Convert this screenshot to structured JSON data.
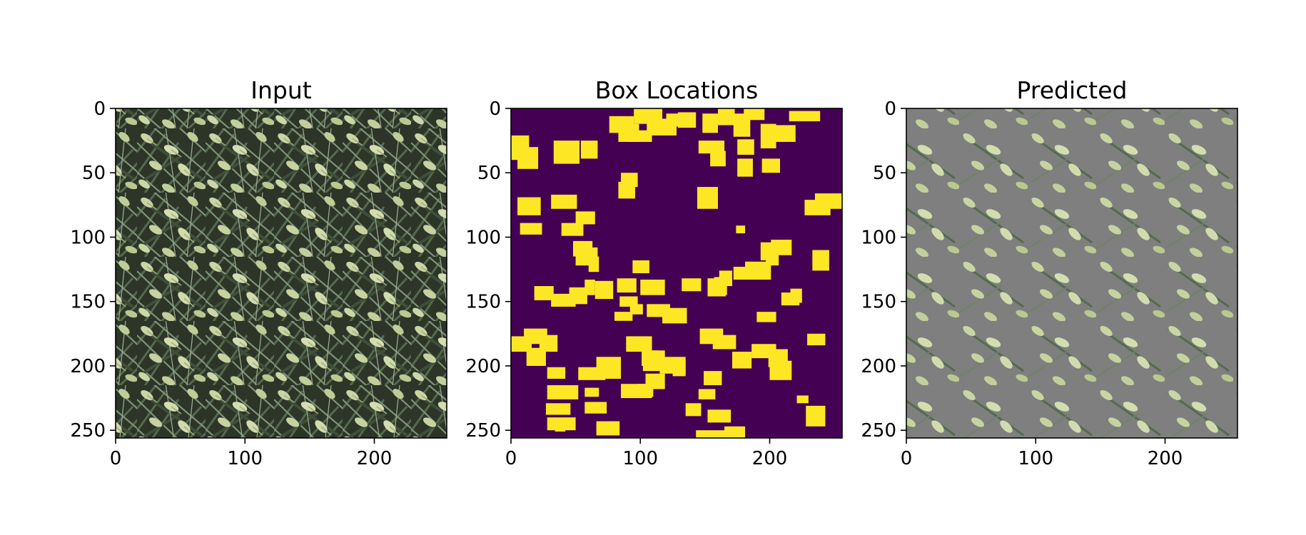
{
  "figure": {
    "background": "#ffffff"
  },
  "chart_data": [
    {
      "type": "heatmap",
      "title": "Input",
      "content": "RGB photograph of dense wheat plants: dark green leaves with pale yellow-green wheat heads",
      "image_size": [
        256,
        256
      ],
      "xlim": [
        0,
        256
      ],
      "ylim": [
        256,
        0
      ],
      "xticks": [
        0,
        100,
        200
      ],
      "yticks": [
        0,
        50,
        100,
        150,
        200,
        250
      ],
      "colors": {
        "leaf_dark": "#2c3528",
        "leaf": "#4f6249",
        "leaf_light": "#7f9478",
        "head": "#c9d5a3",
        "head_shade": "#9fae7c"
      }
    },
    {
      "type": "heatmap",
      "title": "Box Locations",
      "content": "Binary mask of bounding-box locations (viridis colormap)",
      "image_size": [
        256,
        256
      ],
      "xlim": [
        0,
        256
      ],
      "ylim": [
        256,
        0
      ],
      "xticks": [
        0,
        100,
        200
      ],
      "yticks": [
        0,
        50,
        100,
        150,
        200,
        250
      ],
      "colormap": {
        "background": "#440154",
        "box": "#fde725"
      },
      "boxes": [
        [
          95,
          0,
          22,
          12
        ],
        [
          76,
          6,
          19,
          13
        ],
        [
          83,
          12,
          16,
          14
        ],
        [
          91,
          17,
          18,
          9
        ],
        [
          120,
          4,
          16,
          10
        ],
        [
          105,
          8,
          23,
          13
        ],
        [
          129,
          3,
          14,
          12
        ],
        [
          148,
          4,
          12,
          15
        ],
        [
          160,
          0,
          13,
          13
        ],
        [
          180,
          0,
          16,
          9
        ],
        [
          172,
          4,
          13,
          18
        ],
        [
          193,
          12,
          12,
          19
        ],
        [
          215,
          2,
          24,
          8
        ],
        [
          196,
          13,
          16,
          13
        ],
        [
          209,
          13,
          11,
          13
        ],
        [
          0,
          21,
          14,
          19
        ],
        [
          5,
          30,
          16,
          17
        ],
        [
          33,
          25,
          20,
          18
        ],
        [
          54,
          25,
          13,
          14
        ],
        [
          145,
          25,
          20,
          10
        ],
        [
          154,
          33,
          12,
          12
        ],
        [
          175,
          24,
          13,
          12
        ],
        [
          175,
          39,
          12,
          14
        ],
        [
          194,
          39,
          14,
          11
        ],
        [
          85,
          50,
          13,
          11
        ],
        [
          83,
          57,
          13,
          13
        ],
        [
          144,
          61,
          16,
          17
        ],
        [
          5,
          69,
          18,
          14
        ],
        [
          31,
          67,
          20,
          11
        ],
        [
          50,
          80,
          15,
          10
        ],
        [
          39,
          89,
          17,
          10
        ],
        [
          7,
          89,
          17,
          9
        ],
        [
          227,
          71,
          20,
          12
        ],
        [
          235,
          66,
          21,
          12
        ],
        [
          174,
          91,
          7,
          6
        ],
        [
          48,
          103,
          15,
          12
        ],
        [
          50,
          108,
          17,
          14
        ],
        [
          60,
          115,
          8,
          12
        ],
        [
          193,
          104,
          12,
          14
        ],
        [
          201,
          102,
          16,
          12
        ],
        [
          197,
          114,
          10,
          8
        ],
        [
          233,
          110,
          13,
          16
        ],
        [
          94,
          118,
          13,
          10
        ],
        [
          181,
          119,
          20,
          14
        ],
        [
          172,
          123,
          10,
          10
        ],
        [
          82,
          132,
          15,
          11
        ],
        [
          100,
          133,
          19,
          12
        ],
        [
          132,
          132,
          15,
          10
        ],
        [
          152,
          132,
          14,
          14
        ],
        [
          18,
          138,
          15,
          11
        ],
        [
          31,
          144,
          19,
          10
        ],
        [
          45,
          139,
          14,
          13
        ],
        [
          57,
          133,
          8,
          12
        ],
        [
          65,
          134,
          14,
          14
        ],
        [
          84,
          146,
          14,
          8
        ],
        [
          92,
          152,
          10,
          8
        ],
        [
          80,
          158,
          14,
          7
        ],
        [
          105,
          152,
          18,
          10
        ],
        [
          117,
          155,
          19,
          12
        ],
        [
          157,
          131,
          10,
          14
        ],
        [
          161,
          126,
          10,
          12
        ],
        [
          209,
          143,
          14,
          10
        ],
        [
          216,
          140,
          9,
          11
        ],
        [
          190,
          158,
          15,
          8
        ],
        [
          0,
          177,
          16,
          12
        ],
        [
          10,
          171,
          18,
          12
        ],
        [
          22,
          176,
          14,
          13
        ],
        [
          12,
          186,
          15,
          14
        ],
        [
          89,
          177,
          20,
          12
        ],
        [
          101,
          188,
          13,
          12
        ],
        [
          102,
          188,
          17,
          16
        ],
        [
          115,
          193,
          20,
          13
        ],
        [
          125,
          196,
          10,
          12
        ],
        [
          146,
          171,
          18,
          12
        ],
        [
          156,
          176,
          18,
          11
        ],
        [
          171,
          189,
          15,
          13
        ],
        [
          186,
          183,
          19,
          11
        ],
        [
          199,
          187,
          15,
          14
        ],
        [
          200,
          196,
          17,
          15
        ],
        [
          229,
          175,
          14,
          9
        ],
        [
          28,
          201,
          14,
          9
        ],
        [
          52,
          201,
          21,
          10
        ],
        [
          66,
          193,
          19,
          17
        ],
        [
          85,
          214,
          24,
          11
        ],
        [
          98,
          214,
          12,
          10
        ],
        [
          104,
          206,
          15,
          12
        ],
        [
          149,
          204,
          14,
          11
        ],
        [
          28,
          215,
          24,
          11
        ],
        [
          57,
          217,
          11,
          7
        ],
        [
          145,
          218,
          13,
          8
        ],
        [
          135,
          229,
          12,
          10
        ],
        [
          57,
          228,
          17,
          9
        ],
        [
          27,
          229,
          19,
          9
        ],
        [
          221,
          223,
          9,
          6
        ],
        [
          152,
          234,
          18,
          10
        ],
        [
          28,
          240,
          22,
          10
        ],
        [
          66,
          243,
          18,
          11
        ],
        [
          228,
          231,
          15,
          16
        ],
        [
          143,
          250,
          25,
          6
        ],
        [
          165,
          247,
          16,
          9
        ],
        [
          34,
          245,
          8,
          6
        ]
      ]
    },
    {
      "type": "heatmap",
      "title": "Predicted",
      "content": "Input photograph with non-box regions masked to flat gray",
      "image_size": [
        256,
        256
      ],
      "xlim": [
        0,
        256
      ],
      "ylim": [
        256,
        0
      ],
      "xticks": [
        0,
        100,
        200
      ],
      "yticks": [
        0,
        50,
        100,
        150,
        200,
        250
      ],
      "colors": {
        "mask": "#7f7f7f"
      }
    }
  ]
}
